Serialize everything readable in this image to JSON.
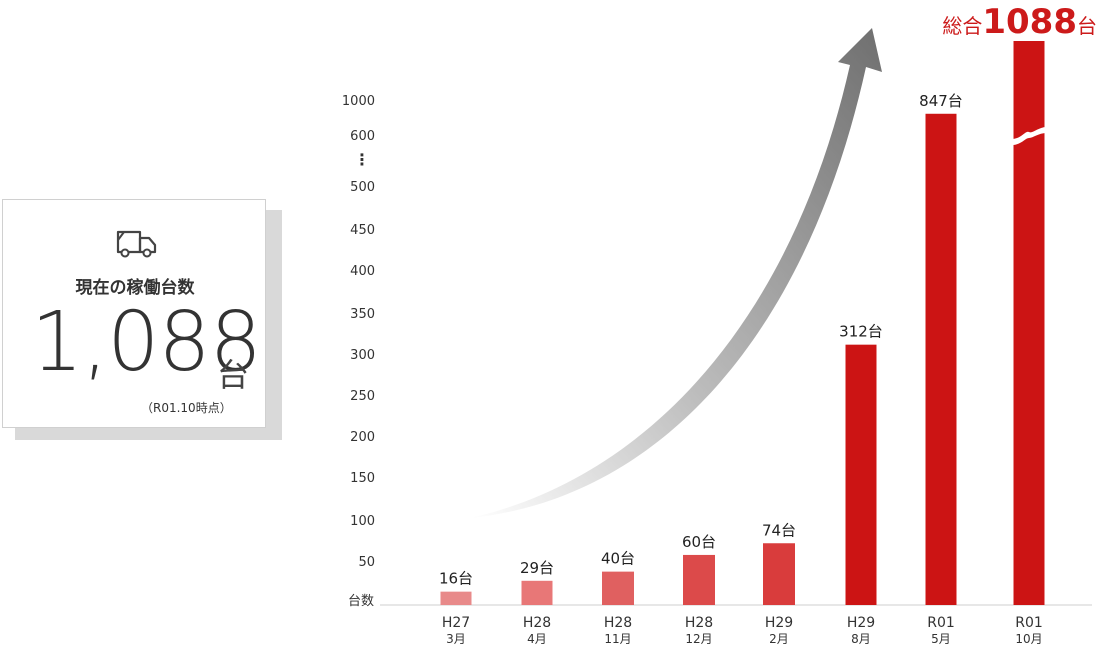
{
  "card": {
    "title": "現在の稼働台数",
    "value": "1,088",
    "unit": "台",
    "note": "（R01.10時点）"
  },
  "chart_data": {
    "type": "bar",
    "categories": [
      "H27 3月",
      "H28 4月",
      "H28 11月",
      "H28 12月",
      "H29 2月",
      "H29 8月",
      "R01 5月",
      "R01 10月"
    ],
    "category_lines": [
      [
        "H27",
        "3月"
      ],
      [
        "H28",
        "4月"
      ],
      [
        "H28",
        "11月"
      ],
      [
        "H28",
        "12月"
      ],
      [
        "H29",
        "2月"
      ],
      [
        "H29",
        "8月"
      ],
      [
        "R01",
        "5月"
      ],
      [
        "R01",
        "10月"
      ]
    ],
    "values": [
      16,
      29,
      40,
      60,
      74,
      312,
      847,
      1088
    ],
    "data_labels": [
      "16台",
      "29台",
      "40台",
      "60台",
      "74台",
      "312台",
      "847台",
      ""
    ],
    "colors": [
      "#e88a8a",
      "#e87777",
      "#e06060",
      "#dc4a4a",
      "#d93c3c",
      "#cc1414",
      "#cc1414",
      "#cc1414"
    ],
    "ylabel": "台数",
    "y_ticks": [
      "50",
      "100",
      "150",
      "200",
      "250",
      "300",
      "350",
      "400",
      "450",
      "500",
      "600",
      "1000"
    ],
    "y_break_mark": "⋮",
    "total_prefix": "総合",
    "total_value": "1088",
    "total_suffix": "台",
    "axis_breaks": true
  }
}
